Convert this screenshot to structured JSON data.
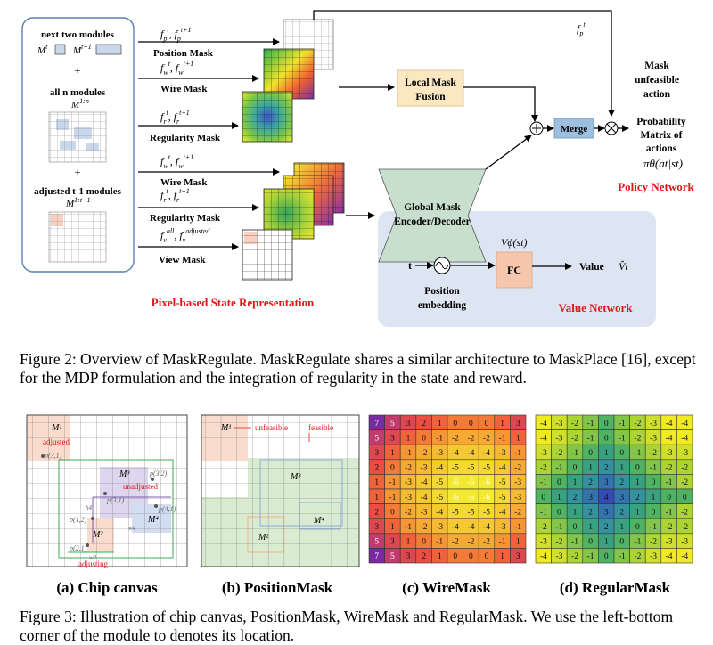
{
  "figure2": {
    "caption": "Figure 2: Overview of MaskRegulate. MaskRegulate shares a similar architecture to MaskPlace [16], except for the MDP formulation and the integration of regularity in the state and reward.",
    "left_panel": {
      "next_two": "next two modules",
      "mt": "M",
      "mt_sup": "t",
      "mt1": "M",
      "mt1_sup": "t+1",
      "plus1": "+",
      "all_n": "all n modules",
      "m1n": "M",
      "m1n_sup": "1:n",
      "plus2": "+",
      "adjusted": "adjusted t-1 modules",
      "m1t": "M",
      "m1t_sup": "1:t−1"
    },
    "inputs": [
      {
        "f": "f",
        "sub1": "p",
        "sup1": "t",
        "sub2": "p",
        "sup2": "t+1",
        "label": "Position Mask"
      },
      {
        "f": "f",
        "sub1": "w",
        "sup1": "t",
        "sub2": "w",
        "sup2": "t+1",
        "label": "Wire Mask"
      },
      {
        "f": "f",
        "sub1": "r",
        "sup1": "t",
        "sub2": "r",
        "sup2": "t+1",
        "label": "Regularity Mask"
      },
      {
        "f": "f",
        "sub1": "w",
        "sup1": "t",
        "sub2": "w",
        "sup2": "t+1",
        "label": "Wire Mask"
      },
      {
        "f": "f",
        "sub1": "r",
        "sup1": "t",
        "sub2": "r",
        "sup2": "t+1",
        "label": "Regularity Mask"
      },
      {
        "f": "f",
        "sub1": "v",
        "sup1": "all",
        "sub2": "v",
        "sup2": "adjusted",
        "label": "View Mask"
      }
    ],
    "pixel_state": "Pixel-based State Representation",
    "local_mask_line1": "Local Mask",
    "local_mask_line2": "Fusion",
    "global_line1": "Global Mask",
    "global_line2": "Encoder/Decoder",
    "merge": "Merge",
    "fpt_f": "f",
    "fpt_sub": "p",
    "fpt_sup": "t",
    "mask_unfeasible_1": "Mask",
    "mask_unfeasible_2": "unfeasible",
    "mask_unfeasible_3": "action",
    "prob_1": "Probability",
    "prob_2": "Matrix of",
    "prob_3": "actions",
    "policy_formula": "πθ(at|st)",
    "policy_network": "Policy Network",
    "value_network": "Value Network",
    "t_label": "t",
    "position_1": "Position",
    "position_2": "embedding",
    "fc": "FC",
    "v_phi": "Vϕ(st)",
    "value_label": "Value",
    "v_hat": "V̂t",
    "colors": {
      "policy_red": "#e3151a",
      "value_bg": "#dde4f2",
      "local_fill": "#fbe8c2",
      "global_fill": "#c8dfcd",
      "merge_fill": "#9ec0df",
      "fc_fill": "#f7c7ad"
    }
  },
  "figure3": {
    "caption": "Figure 3: Illustration of chip canvas, PositionMask, WireMask and RegularMask. We use the left-bottom corner of the module to denotes its location.",
    "sub_a": "(a) Chip canvas",
    "sub_b": "(b) PositionMask",
    "sub_c": "(c) WireMask",
    "sub_d": "(d) RegularMask",
    "canvas": {
      "m1": "M¹",
      "adjusted": "adjusted",
      "p31": "p(3,1)",
      "m3": "M³",
      "p32a": "p(3,2)",
      "unadjusted": "unadjusted",
      "p31b": "p(3,1)",
      "h4": "h4",
      "p41": "p(4,1)",
      "m4": "M⁴",
      "p12": "p(1,2)",
      "m2": "M²",
      "w4": "w4",
      "p21": "p(2,1)",
      "w2": "w2",
      "adjusting": "adjusting"
    },
    "position_mask": {
      "m1": "M¹",
      "unfeasible": "unfeasible",
      "feasible": "feasible",
      "m3": "M³",
      "m4": "M⁴",
      "m2": "M²"
    },
    "wire_mask": [
      [
        7,
        5,
        3,
        2,
        1,
        0,
        0,
        0,
        1,
        3
      ],
      [
        5,
        3,
        1,
        0,
        -1,
        -2,
        -2,
        -2,
        -1,
        1
      ],
      [
        3,
        1,
        -1,
        -2,
        -3,
        -4,
        -4,
        -4,
        -3,
        -1
      ],
      [
        2,
        0,
        -2,
        -3,
        -4,
        -5,
        -5,
        -5,
        -4,
        -2
      ],
      [
        1,
        -1,
        -3,
        -4,
        -5,
        -6,
        -6,
        -6,
        -5,
        -3
      ],
      [
        1,
        -1,
        -3,
        -4,
        -5,
        -6,
        -6,
        -6,
        -5,
        -3
      ],
      [
        2,
        0,
        -2,
        -3,
        -4,
        -5,
        -5,
        -5,
        -4,
        -2
      ],
      [
        3,
        1,
        -1,
        -2,
        -3,
        -4,
        -4,
        -4,
        -3,
        -1
      ],
      [
        5,
        3,
        1,
        0,
        -1,
        -2,
        -2,
        -2,
        -1,
        1
      ],
      [
        7,
        5,
        3,
        2,
        1,
        0,
        0,
        0,
        1,
        3
      ]
    ],
    "regular_mask": [
      [
        -4,
        -3,
        -2,
        -1,
        0,
        -1,
        -2,
        -3,
        -4,
        -4
      ],
      [
        -4,
        -3,
        -2,
        -1,
        0,
        -1,
        -2,
        -3,
        -4,
        -4
      ],
      [
        -3,
        -2,
        -1,
        0,
        1,
        0,
        -1,
        -2,
        -3,
        -3
      ],
      [
        -2,
        -1,
        0,
        1,
        2,
        1,
        0,
        -1,
        -2,
        -2
      ],
      [
        -1,
        0,
        1,
        2,
        3,
        2,
        1,
        0,
        -1,
        -2
      ],
      [
        0,
        1,
        2,
        3,
        4,
        3,
        2,
        1,
        0,
        0
      ],
      [
        -1,
        0,
        1,
        2,
        3,
        2,
        1,
        0,
        -1,
        -2
      ],
      [
        -2,
        -1,
        0,
        1,
        2,
        1,
        0,
        -1,
        -2,
        -2
      ],
      [
        -3,
        -2,
        -1,
        0,
        1,
        0,
        -1,
        -2,
        -3,
        -3
      ],
      [
        -4,
        -3,
        -2,
        -1,
        0,
        -1,
        -2,
        -3,
        -4,
        -4
      ]
    ]
  }
}
